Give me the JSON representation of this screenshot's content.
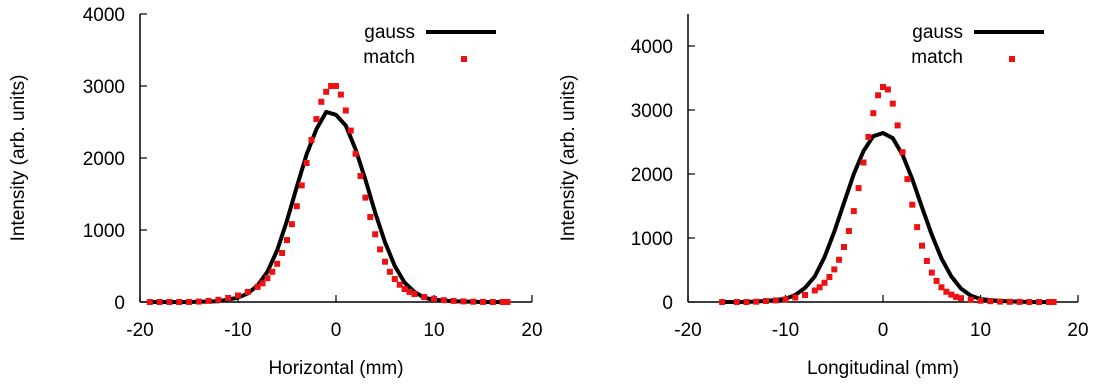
{
  "colors": {
    "gauss": "#000000",
    "match": "#ee1111",
    "axis": "#000000"
  },
  "chart_data": [
    {
      "type": "scatter",
      "title": "",
      "xlabel": "Horizontal (mm)",
      "ylabel": "Intensity (arb. units)",
      "xlim": [
        -20,
        20
      ],
      "ylim": [
        0,
        4000
      ],
      "xticks": [
        -20,
        -10,
        0,
        10,
        20
      ],
      "yticks": [
        0,
        1000,
        2000,
        3000,
        4000
      ],
      "grid": false,
      "legend": "top-right",
      "series": [
        {
          "name": "gauss",
          "style": "line",
          "x": [
            -19,
            -15,
            -12,
            -10,
            -9,
            -8,
            -7,
            -6,
            -5,
            -4,
            -3,
            -2,
            -1,
            0,
            1,
            2,
            3,
            4,
            5,
            6,
            7,
            8,
            9,
            10,
            12,
            15,
            17.5
          ],
          "y": [
            0,
            0,
            10,
            60,
            120,
            230,
            420,
            720,
            1130,
            1600,
            2050,
            2400,
            2640,
            2600,
            2450,
            2120,
            1700,
            1240,
            830,
            500,
            270,
            140,
            60,
            30,
            10,
            0,
            0
          ]
        },
        {
          "name": "match",
          "style": "points",
          "x": [
            -19,
            -18,
            -17,
            -16,
            -15,
            -14,
            -13,
            -12,
            -11,
            -10,
            -9,
            -8,
            -7.5,
            -7,
            -6.5,
            -6,
            -5.5,
            -5,
            -4.5,
            -4,
            -3.5,
            -3,
            -2.5,
            -2,
            -1.5,
            -1,
            -0.5,
            0,
            0.5,
            1,
            1.5,
            2,
            2.5,
            3,
            3.5,
            4,
            4.5,
            5,
            5.5,
            6,
            6.5,
            7,
            7.5,
            8,
            9,
            10,
            11,
            12,
            13,
            14,
            15,
            16,
            17,
            17.5
          ],
          "y": [
            0,
            0,
            0,
            0,
            0,
            5,
            15,
            30,
            55,
            90,
            140,
            210,
            260,
            330,
            420,
            530,
            680,
            860,
            1080,
            1330,
            1620,
            1930,
            2250,
            2540,
            2780,
            2920,
            3000,
            3000,
            2880,
            2660,
            2380,
            2060,
            1750,
            1450,
            1180,
            940,
            730,
            560,
            420,
            320,
            240,
            180,
            140,
            110,
            70,
            45,
            25,
            15,
            8,
            4,
            2,
            0,
            0,
            0
          ]
        }
      ]
    },
    {
      "type": "scatter",
      "title": "",
      "xlabel": "Longitudinal (mm)",
      "ylabel": "Intensity (arb. units)",
      "xlim": [
        -20,
        20
      ],
      "ylim": [
        0,
        4500
      ],
      "xticks": [
        -20,
        -10,
        0,
        10,
        20
      ],
      "yticks": [
        0,
        1000,
        2000,
        3000,
        4000
      ],
      "grid": false,
      "legend": "top-right",
      "series": [
        {
          "name": "gauss",
          "style": "line",
          "x": [
            -16.5,
            -14,
            -12,
            -10,
            -9,
            -8,
            -7,
            -6,
            -5,
            -4,
            -3,
            -2,
            -1,
            0,
            1,
            2,
            3,
            4,
            5,
            6,
            7,
            8,
            9,
            10,
            12,
            15,
            17.5
          ],
          "y": [
            0,
            0,
            15,
            50,
            110,
            220,
            400,
            700,
            1100,
            1550,
            2000,
            2360,
            2590,
            2640,
            2560,
            2300,
            1920,
            1480,
            1050,
            680,
            400,
            210,
            100,
            45,
            15,
            0,
            0
          ]
        },
        {
          "name": "match",
          "style": "points",
          "x": [
            -16.5,
            -15,
            -14,
            -13,
            -12,
            -11,
            -10,
            -9,
            -8,
            -7,
            -6.5,
            -6,
            -5.5,
            -5,
            -4.5,
            -4,
            -3.5,
            -3,
            -2.5,
            -2,
            -1.5,
            -1,
            -0.5,
            0,
            0.5,
            1,
            1.5,
            2,
            2.5,
            3,
            3.5,
            4,
            4.5,
            5,
            5.5,
            6,
            6.5,
            7,
            7.5,
            8,
            9,
            10,
            11,
            12,
            13,
            14,
            15,
            16,
            17,
            17.5
          ],
          "y": [
            0,
            0,
            0,
            5,
            15,
            25,
            40,
            70,
            110,
            180,
            230,
            300,
            390,
            510,
            660,
            860,
            1110,
            1420,
            1780,
            2180,
            2580,
            2950,
            3230,
            3360,
            3320,
            3100,
            2760,
            2340,
            1920,
            1520,
            1170,
            880,
            640,
            460,
            330,
            230,
            160,
            115,
            80,
            60,
            35,
            20,
            12,
            6,
            3,
            1,
            0,
            0,
            0,
            0
          ]
        }
      ]
    }
  ]
}
